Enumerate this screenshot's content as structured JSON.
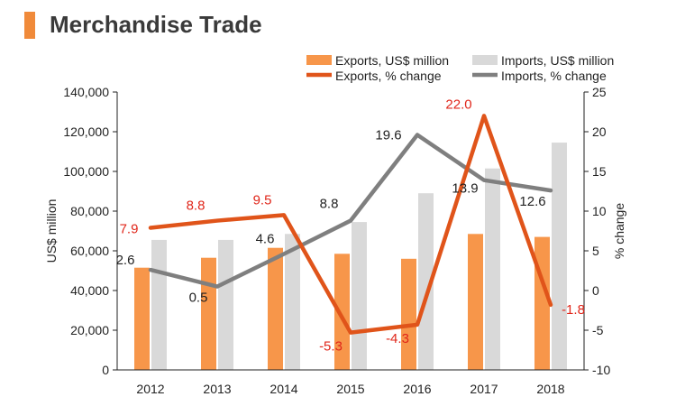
{
  "title": "Merchandise Trade",
  "colors": {
    "accent": "#f08a3a",
    "exports_bar": "#f7964a",
    "imports_bar": "#d9d9d9",
    "exports_line": "#e0541a",
    "imports_line": "#7f7f7f",
    "exports_label": "#e0261a",
    "imports_label": "#222222",
    "axis": "#222222"
  },
  "chart_data": {
    "type": "bar",
    "categories": [
      "2012",
      "2013",
      "2014",
      "2015",
      "2016",
      "2017",
      "2018"
    ],
    "series": [
      {
        "name": "Exports, US$ million",
        "type": "bar",
        "axis": "left",
        "values": [
          51500,
          56500,
          61500,
          58500,
          56000,
          68500,
          67000
        ]
      },
      {
        "name": "Imports, US$ million",
        "type": "bar",
        "axis": "left",
        "values": [
          65500,
          65500,
          68500,
          74500,
          89000,
          101500,
          114500
        ]
      },
      {
        "name": "Exports, % change",
        "type": "line",
        "axis": "right",
        "values": [
          7.9,
          8.8,
          9.5,
          -5.3,
          -4.3,
          22.0,
          -1.8
        ],
        "labels": [
          "7.9",
          "8.8",
          "9.5",
          "-5.3",
          "-4.3",
          "22.0",
          "-1.8"
        ]
      },
      {
        "name": "Imports, % change",
        "type": "line",
        "axis": "right",
        "values": [
          2.6,
          0.5,
          4.6,
          8.8,
          19.6,
          13.9,
          12.6
        ],
        "labels": [
          "2.6",
          "0.5",
          "4.6",
          "8.8",
          "19.6",
          "13.9",
          "12.6"
        ]
      }
    ],
    "ylabel": "US$ million",
    "y2label": "% change",
    "ylim": [
      0,
      140000
    ],
    "y2lim": [
      -10,
      25
    ],
    "yticks": [
      "0",
      "20,000",
      "40,000",
      "60,000",
      "80,000",
      "100,000",
      "120,000",
      "140,000"
    ],
    "y2ticks": [
      "-10",
      "-5",
      "0",
      "5",
      "10",
      "15",
      "20",
      "25"
    ],
    "legend": "top-right",
    "grid": false
  }
}
